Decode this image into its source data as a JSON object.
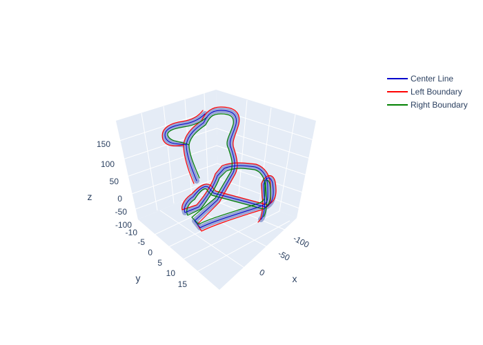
{
  "chart_data": {
    "type": "line3d",
    "title": "",
    "axes": {
      "x": {
        "title": "x",
        "ticks": [
          "-100",
          "-50",
          "0"
        ]
      },
      "y": {
        "title": "y",
        "ticks": [
          "-10",
          "-5",
          "0",
          "5",
          "10",
          "15"
        ]
      },
      "z": {
        "title": "z",
        "ticks": [
          "150",
          "100",
          "50",
          "0",
          "-50",
          "-100"
        ]
      }
    },
    "legend": {
      "placement": "top-right",
      "items": [
        {
          "name": "Center Line",
          "color": "#0000cc"
        },
        {
          "name": "Left Boundary",
          "color": "#ff0000"
        },
        {
          "name": "Right Boundary",
          "color": "#008000"
        }
      ]
    },
    "surface_color": "#9aa6d6",
    "series": [
      {
        "name": "Center Line",
        "color": "#0000cc"
      },
      {
        "name": "Left Boundary",
        "color": "#ff0000"
      },
      {
        "name": "Right Boundary",
        "color": "#008000"
      }
    ]
  }
}
